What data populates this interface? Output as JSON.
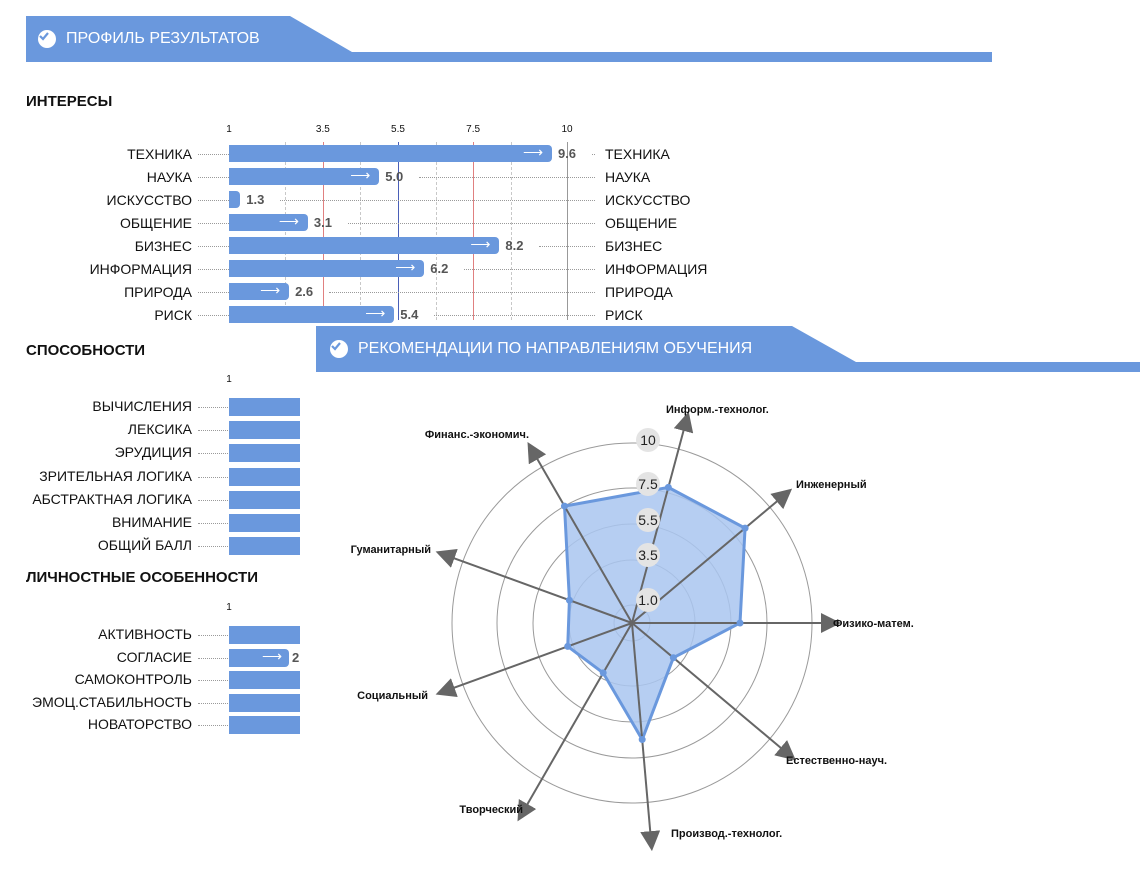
{
  "header1": {
    "title": "ПРОФИЛЬ РЕЗУЛЬТАТОВ"
  },
  "header2": {
    "title": "РЕКОМЕНДАЦИИ ПО НАПРАВЛЕНИЯМ ОБУЧЕНИЯ"
  },
  "colors": {
    "accent": "#6a98dd",
    "bar": "#6a98dd",
    "fill": "#a9c6f0",
    "red_line": "#e08080",
    "blue_line": "#4a5fb8"
  },
  "interests": {
    "title": "ИНТЕРЕСЫ",
    "ticks": [
      "1",
      "3.5",
      "5.5",
      "7.5",
      "10"
    ],
    "items": [
      {
        "label": "ТЕХНИКА",
        "value": 9.6,
        "value_text": "9.6"
      },
      {
        "label": "НАУКА",
        "value": 5.0,
        "value_text": "5.0"
      },
      {
        "label": "ИСКУССТВО",
        "value": 1.3,
        "value_text": "1.3"
      },
      {
        "label": "ОБЩЕНИЕ",
        "value": 3.1,
        "value_text": "3.1"
      },
      {
        "label": "БИЗНЕС",
        "value": 8.2,
        "value_text": "8.2"
      },
      {
        "label": "ИНФОРМАЦИЯ",
        "value": 6.2,
        "value_text": "6.2"
      },
      {
        "label": "ПРИРОДА",
        "value": 2.6,
        "value_text": "2.6"
      },
      {
        "label": "РИСК",
        "value": 5.4,
        "value_text": "5.4"
      }
    ]
  },
  "abilities": {
    "title": "СПОСОБНОСТИ",
    "tick": "1",
    "items": [
      "ВЫЧИСЛЕНИЯ",
      "ЛЕКСИКА",
      "ЭРУДИЦИЯ",
      "ЗРИТЕЛЬНАЯ ЛОГИКА",
      "АБСТРАКТНАЯ ЛОГИКА",
      "ВНИМАНИЕ",
      "ОБЩИЙ БАЛЛ"
    ]
  },
  "personality": {
    "title": "ЛИЧНОСТНЫЕ ОСОБЕННОСТИ",
    "tick": "1",
    "items": [
      "АКТИВНОСТЬ",
      "СОГЛАСИЕ",
      "САМОКОНТРОЛЬ",
      "ЭМОЦ.СТАБИЛЬНОСТЬ",
      "НОВАТОРСТВО"
    ],
    "visible_value_text": "2"
  },
  "chart_data": [
    {
      "type": "bar",
      "title": "ИНТЕРЕСЫ",
      "categories": [
        "ТЕХНИКА",
        "НАУКА",
        "ИСКУССТВО",
        "ОБЩЕНИЕ",
        "БИЗНЕС",
        "ИНФОРМАЦИЯ",
        "ПРИРОДА",
        "РИСК"
      ],
      "values": [
        9.6,
        5.0,
        1.3,
        3.1,
        8.2,
        6.2,
        2.6,
        5.4
      ],
      "xlim": [
        1,
        10
      ],
      "orientation": "horizontal"
    },
    {
      "type": "radar",
      "title": "",
      "categories": [
        "Информ.-технолог.",
        "Инженерный",
        "Физико-матем.",
        "Естественно-науч.",
        "Производ.-технолог.",
        "Творческий",
        "Социальный",
        "Гуманитарный",
        "Финанс.-экономич."
      ],
      "values": [
        7.8,
        8.2,
        6.0,
        3.0,
        6.5,
        3.2,
        3.8,
        3.7,
        7.5
      ],
      "rings": [
        "1.0",
        "3.5",
        "5.5",
        "7.5",
        "10"
      ],
      "rlim": [
        0,
        10
      ]
    }
  ]
}
